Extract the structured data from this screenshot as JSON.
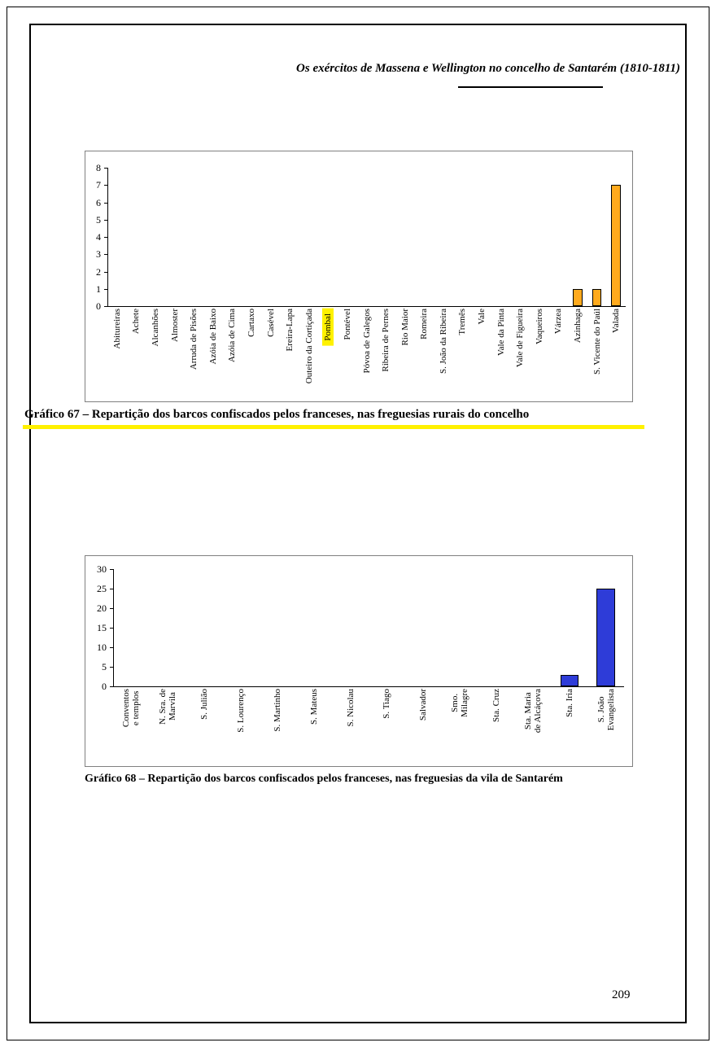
{
  "page": {
    "header": "Os exércitos de Massena e Wellington no concelho de Santarém (1810-1811)",
    "page_number": "209"
  },
  "chart_data": [
    {
      "type": "bar",
      "caption": "Gráfico 67 – Repartição dos barcos confiscados pelos franceses, nas freguesias rurais do concelho",
      "categories": [
        "Abitureiras",
        "Achete",
        "Alcanhões",
        "Almoster",
        "Arruda de Pisões",
        "Azóia de Baixo",
        "Azóia de Cima",
        "Cartaxo",
        "Casével",
        "Ereira-Lapa",
        "Outeiro da Cortiçada",
        "Pombal",
        "Pontével",
        "Póvoa de Galegos",
        "Ribeira de Pernes",
        "Rio Maior",
        "Romeira",
        "S. João da Ribeira",
        "Tremês",
        "Vale",
        "Vale da Pinta",
        "Vale de Figueira",
        "Vaqueiros",
        "Várzea",
        "Azinhaga",
        "S. Vicente do Paúl",
        "Valada"
      ],
      "values": [
        0,
        0,
        0,
        0,
        0,
        0,
        0,
        0,
        0,
        0,
        0,
        0,
        0,
        0,
        0,
        0,
        0,
        0,
        0,
        0,
        0,
        0,
        0,
        0,
        1,
        1,
        7
      ],
      "ylim": [
        0,
        8
      ],
      "yticks": [
        0,
        1,
        2,
        3,
        4,
        5,
        6,
        7,
        8
      ],
      "bar_color": "#FFAA1D",
      "highlight_category": "Pombal",
      "highlight_color": "#FFF100",
      "grid": "off",
      "legend": "none"
    },
    {
      "type": "bar",
      "caption": "Gráfico 68 – Repartição dos barcos confiscados pelos franceses, nas freguesias da vila de Santarém",
      "categories": [
        "Conventos\ne templos",
        "N. Sra. de\nMarvila",
        "S. Julião",
        "S. Lourenço",
        "S. Martinho",
        "S. Mateus",
        "S. Nicolau",
        "S. Tiago",
        "Salvador",
        "Smo.\nMilagre",
        "Sta. Cruz",
        "Sta. Maria\nde Alcáçova",
        "Sta. Iria",
        "S. João\nEvangelista"
      ],
      "values": [
        0,
        0,
        0,
        0,
        0,
        0,
        0,
        0,
        0,
        0,
        0,
        0,
        3,
        25
      ],
      "ylim": [
        0,
        30
      ],
      "yticks": [
        0,
        5,
        10,
        15,
        20,
        25,
        30
      ],
      "bar_color": "#2E3CD8",
      "grid": "off",
      "legend": "none"
    }
  ]
}
